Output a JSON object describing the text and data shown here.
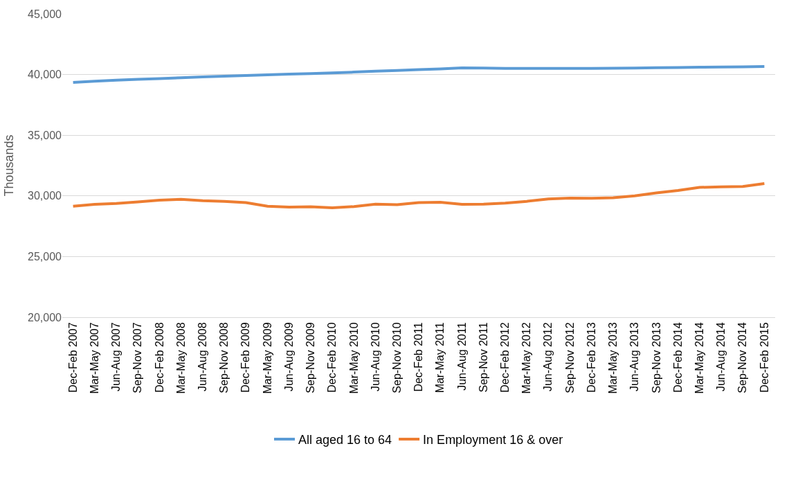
{
  "chart_data": {
    "type": "line",
    "ylabel": "Thousands",
    "categories": [
      "Dec-Feb 2007",
      "Mar-May 2007",
      "Jun-Aug 2007",
      "Sep-Nov 2007",
      "Dec-Feb 2008",
      "Mar-May 2008",
      "Jun-Aug 2008",
      "Sep-Nov 2008",
      "Dec-Feb 2009",
      "Mar-May 2009",
      "Jun-Aug 2009",
      "Sep-Nov 2009",
      "Dec-Feb 2010",
      "Mar-May 2010",
      "Jun-Aug 2010",
      "Sep-Nov 2010",
      "Dec-Feb 2011",
      "Mar-May 2011",
      "Jun-Aug 2011",
      "Sep-Nov 2011",
      "Dec-Feb 2012",
      "Mar-May 2012",
      "Jun-Aug 2012",
      "Sep-Nov 2012",
      "Dec-Feb 2013",
      "Mar-May 2013",
      "Jun-Aug 2013",
      "Sep-Nov 2013",
      "Dec-Feb 2014",
      "Mar-May 2014",
      "Jun-Aug 2014",
      "Sep-Nov 2014",
      "Dec-Feb 2015"
    ],
    "series": [
      {
        "name": "All aged 16 to 64",
        "color": "#5b9bd5",
        "values": [
          39350,
          39450,
          39530,
          39600,
          39670,
          39740,
          39800,
          39860,
          39920,
          39980,
          40030,
          40080,
          40140,
          40200,
          40270,
          40340,
          40400,
          40460,
          40550,
          40530,
          40510,
          40500,
          40500,
          40500,
          40510,
          40520,
          40530,
          40560,
          40580,
          40600,
          40620,
          40640,
          40660
        ]
      },
      {
        "name": "In Employment 16 & over",
        "color": "#ed7d31",
        "values": [
          29150,
          29300,
          29370,
          29500,
          29650,
          29720,
          29600,
          29550,
          29450,
          29150,
          29080,
          29100,
          29020,
          29120,
          29320,
          29280,
          29450,
          29480,
          29300,
          29320,
          29400,
          29550,
          29750,
          29820,
          29800,
          29850,
          30000,
          30250,
          30450,
          30700,
          30750,
          30780,
          31020
        ]
      }
    ],
    "ylim": [
      20000,
      45000
    ],
    "yticks": [
      {
        "value": 20000,
        "label": "20,000"
      },
      {
        "value": 25000,
        "label": "25,000"
      },
      {
        "value": 30000,
        "label": "30,000"
      },
      {
        "value": 35000,
        "label": "35,000"
      },
      {
        "value": 40000,
        "label": "40,000"
      },
      {
        "value": 45000,
        "label": "45,000"
      }
    ],
    "grid": "y",
    "legend": "bottom",
    "marker": "none",
    "line_style": "solid"
  }
}
